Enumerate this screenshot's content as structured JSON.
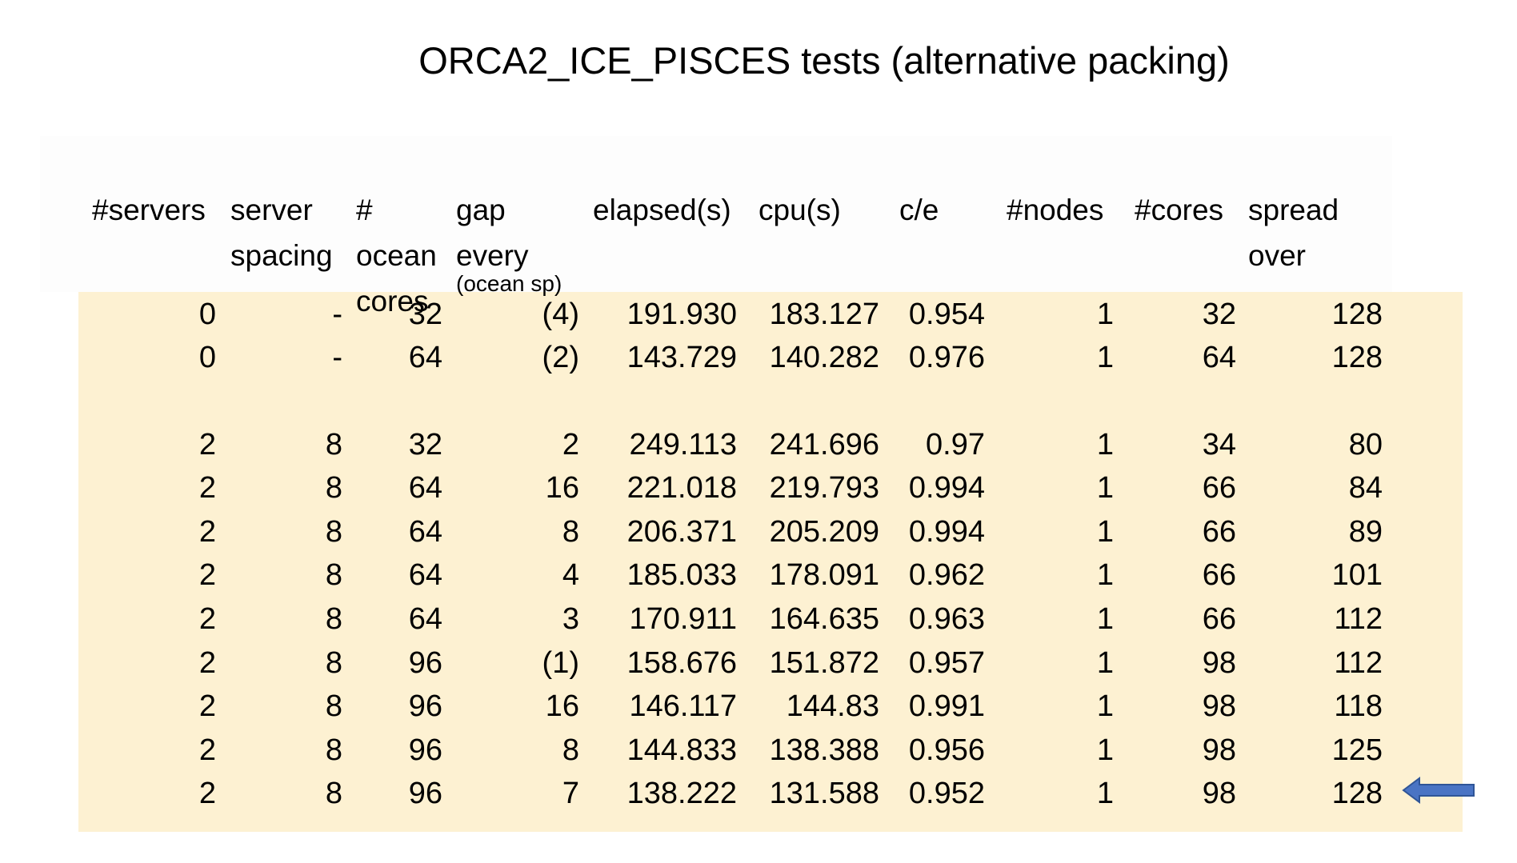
{
  "title": "ORCA2_ICE_PISCES tests (alternative packing)",
  "columns": [
    {
      "label": "#servers",
      "sub": ""
    },
    {
      "label": "server\nspacing",
      "sub": ""
    },
    {
      "label": "#\nocean\ncores",
      "sub": ""
    },
    {
      "label": "gap\nevery",
      "sub": "(ocean sp)"
    },
    {
      "label": "elapsed(s)",
      "sub": ""
    },
    {
      "label": "cpu(s)",
      "sub": ""
    },
    {
      "label": "c/e",
      "sub": ""
    },
    {
      "label": "#nodes",
      "sub": ""
    },
    {
      "label": "#cores",
      "sub": ""
    },
    {
      "label": "spread\nover",
      "sub": ""
    }
  ],
  "rows": [
    [
      "0",
      "-",
      "32",
      "(4)",
      "191.930",
      "183.127",
      "0.954",
      "1",
      "32",
      "128"
    ],
    [
      "0",
      "-",
      "64",
      "(2)",
      "143.729",
      "140.282",
      "0.976",
      "1",
      "64",
      "128"
    ],
    [
      "2",
      "8",
      "32",
      "2",
      "249.113",
      "241.696",
      "0.97",
      "1",
      "34",
      "80"
    ],
    [
      "2",
      "8",
      "64",
      "16",
      "221.018",
      "219.793",
      "0.994",
      "1",
      "66",
      "84"
    ],
    [
      "2",
      "8",
      "64",
      "8",
      "206.371",
      "205.209",
      "0.994",
      "1",
      "66",
      "89"
    ],
    [
      "2",
      "8",
      "64",
      "4",
      "185.033",
      "178.091",
      "0.962",
      "1",
      "66",
      "101"
    ],
    [
      "2",
      "8",
      "64",
      "3",
      "170.911",
      "164.635",
      "0.963",
      "1",
      "66",
      "112"
    ],
    [
      "2",
      "8",
      "96",
      "(1)",
      "158.676",
      "151.872",
      "0.957",
      "1",
      "98",
      "112"
    ],
    [
      "2",
      "8",
      "96",
      "16",
      "146.117",
      "144.83",
      "0.991",
      "1",
      "98",
      "118"
    ],
    [
      "2",
      "8",
      "96",
      "8",
      "144.833",
      "138.388",
      "0.956",
      "1",
      "98",
      "125"
    ],
    [
      "2",
      "8",
      "96",
      "7",
      "138.222",
      "131.588",
      "0.952",
      "1",
      "98",
      "128"
    ]
  ],
  "colors": {
    "data_background": "#fdf1d2",
    "arrow": "#4a74c4"
  },
  "marker": {
    "row": 10,
    "icon": "left-arrow-icon"
  }
}
